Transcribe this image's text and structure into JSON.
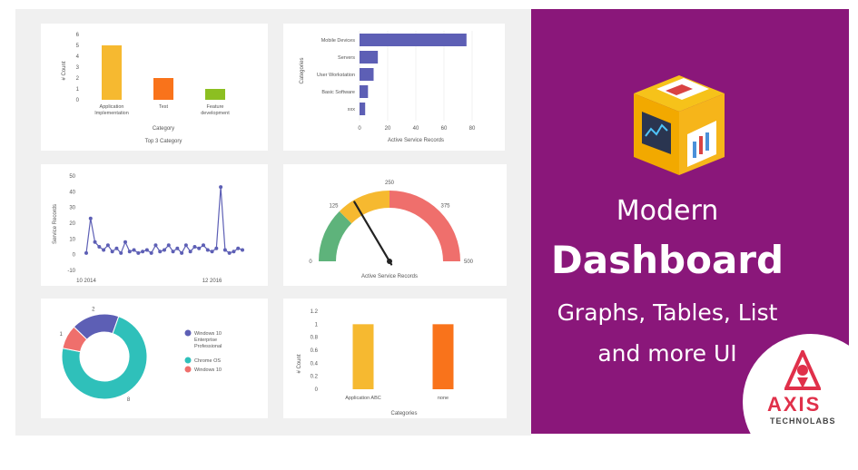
{
  "chart_data": [
    {
      "type": "bar",
      "categories": [
        "Application Implementation",
        "Test",
        "Feature development"
      ],
      "values": [
        5,
        2,
        1
      ],
      "colors": [
        "#f6b930",
        "#f9731b",
        "#8cbf21"
      ],
      "ylabel": "# Count",
      "xlabel": "Category",
      "title": "Top 3 Category",
      "ylim": [
        0,
        6
      ],
      "yticks": [
        "0",
        "1",
        "2",
        "3",
        "4",
        "5",
        "6"
      ]
    },
    {
      "type": "bar",
      "orientation": "horizontal",
      "categories": [
        "Mobile Devices",
        "Servers",
        "User Workstation",
        "Basic Software",
        "xxx"
      ],
      "values": [
        76,
        13,
        10,
        6,
        4
      ],
      "color": "#5d5fb5",
      "ylabel": "Categories",
      "xlabel": "Active Service Records",
      "xlim": [
        0,
        80
      ],
      "xticks": [
        "0",
        "20",
        "40",
        "60",
        "80"
      ]
    },
    {
      "type": "line",
      "x": [
        "10 2014",
        "",
        "",
        "",
        "",
        "",
        "",
        "",
        "",
        "",
        "",
        "",
        "",
        "",
        "",
        "",
        "",
        "",
        "",
        "",
        "",
        "",
        "",
        "",
        "",
        "",
        "",
        "",
        "",
        "12 2016",
        "",
        "",
        "",
        "",
        "",
        "",
        ""
      ],
      "values": [
        1,
        23,
        8,
        5,
        3,
        6,
        2,
        4,
        1,
        8,
        2,
        3,
        1,
        2,
        3,
        1,
        6,
        2,
        3,
        6,
        2,
        4,
        1,
        6,
        2,
        5,
        4,
        6,
        3,
        2,
        4,
        43,
        3,
        1,
        2,
        4,
        3
      ],
      "color": "#5d5fb5",
      "ylabel": "Service Records",
      "ylim": [
        -10,
        50
      ],
      "yticks": [
        "-10",
        "0",
        "10",
        "20",
        "30",
        "40",
        "50"
      ],
      "xtick_labels": [
        "10 2014",
        "12 2016"
      ]
    },
    {
      "type": "gauge",
      "value": 165,
      "min": 0,
      "max": 500,
      "bands": [
        {
          "from": 0,
          "to": 125,
          "color": "#5eb37b"
        },
        {
          "from": 125,
          "to": 250,
          "color": "#f6b930"
        },
        {
          "from": 250,
          "to": 500,
          "color": "#ef6f6c"
        }
      ],
      "tick_labels": [
        "0",
        "125",
        "250",
        "375",
        "500"
      ],
      "xlabel": "Active Service Records"
    },
    {
      "type": "pie",
      "donut": true,
      "labels": [
        "Windows 10 Enterprise Professional",
        "Chrome OS",
        "Windows 10"
      ],
      "values": [
        2,
        8,
        1
      ],
      "colors": [
        "#5d5fb5",
        "#2fc0ba",
        "#ef6f6c"
      ],
      "legend": "right"
    },
    {
      "type": "bar",
      "categories": [
        "Application ABC",
        "none"
      ],
      "values": [
        1,
        1
      ],
      "colors": [
        "#f6b930",
        "#f9731b"
      ],
      "ylabel": "# Count",
      "xlabel": "Categories",
      "ylim": [
        0,
        1.2
      ],
      "yticks": [
        "0",
        "0.2",
        "0.4",
        "0.6",
        "0.8",
        "1",
        "1.2"
      ]
    }
  ],
  "promo": {
    "title_line1": "Modern",
    "title_line2": "Dashboard",
    "subtitle_line1": "Graphs, Tables, List",
    "subtitle_line2": "and more UI"
  },
  "brand": {
    "name": "AXIS",
    "tagline": "TECHNOLABS",
    "accent": "#e0304a",
    "purple": "#8a177a"
  }
}
